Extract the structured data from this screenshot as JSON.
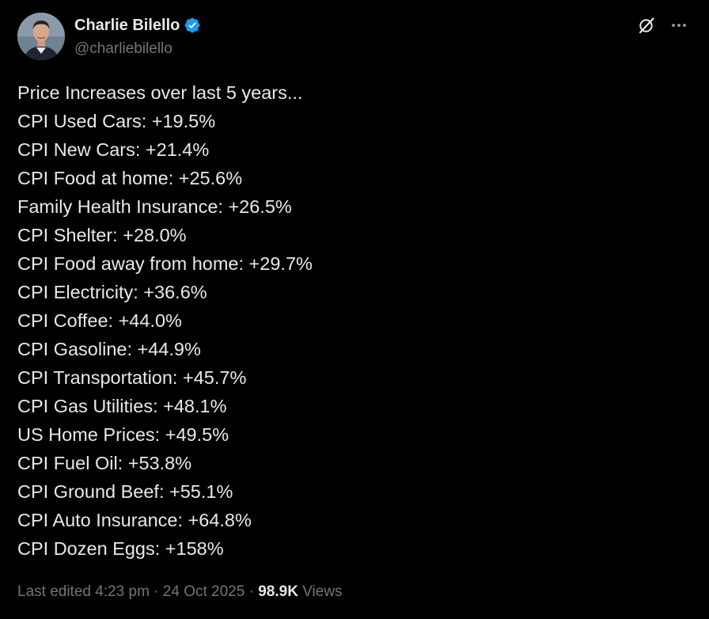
{
  "author": {
    "display_name": "Charlie Bilello",
    "handle": "@charliebilello",
    "verified": true,
    "verified_color": "#1d9bf0",
    "avatar": "profile-photo"
  },
  "actions": {
    "grok_icon": "grok-icon",
    "more_icon": "more-horizontal-icon"
  },
  "tweet": {
    "lines": [
      "Price Increases over last 5 years...",
      "CPI Used Cars: +19.5%",
      "CPI New Cars: +21.4%",
      "CPI Food at home: +25.6%",
      "Family Health Insurance: +26.5%",
      "CPI Shelter: +28.0%",
      "CPI Food away from home: +29.7%",
      "CPI Electricity: +36.6%",
      "CPI Coffee: +44.0%",
      "CPI Gasoline: +44.9%",
      "CPI Transportation: +45.7%",
      "CPI Gas Utilities: +48.1%",
      "US Home Prices: +49.5%",
      "CPI Fuel Oil: +53.8%",
      "CPI Ground Beef: +55.1%",
      "CPI Auto Insurance: +64.8%",
      "CPI Dozen Eggs: +158%"
    ]
  },
  "meta": {
    "edited_label": "Last edited",
    "time": "4:23 pm",
    "separator": "·",
    "date": "24 Oct 2025",
    "views_count": "98.9K",
    "views_label": "Views"
  },
  "colors": {
    "background": "#000000",
    "text_primary": "#e7e9ea",
    "text_secondary": "#71767b"
  }
}
